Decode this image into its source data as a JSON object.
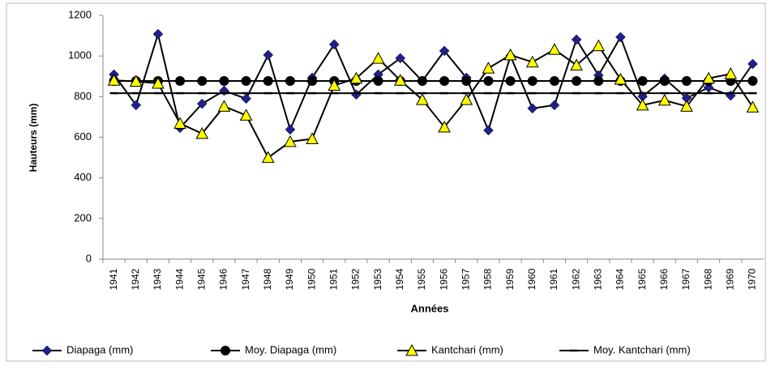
{
  "chart_data": {
    "type": "line",
    "xlabel": "Années",
    "ylabel": "Hauteurs (mm)",
    "categories": [
      "1941",
      "1942",
      "1943",
      "1944",
      "1945",
      "1946",
      "1947",
      "1948",
      "1949",
      "1950",
      "1951",
      "1952",
      "1953",
      "1954",
      "1955",
      "1956",
      "1957",
      "1958",
      "1959",
      "1960",
      "1961",
      "1962",
      "1963",
      "1964",
      "1965",
      "1966",
      "1967",
      "1968",
      "1969",
      "1970"
    ],
    "ylim": [
      0,
      1200
    ],
    "yticks": [
      0,
      200,
      400,
      600,
      800,
      1000,
      1200
    ],
    "grid": false,
    "legend": "bottom",
    "series": [
      {
        "name": "Diapaga (mm)",
        "color": "#1f1f8f",
        "marker": "diamond",
        "values": [
          909,
          758,
          1108,
          646,
          765,
          829,
          790,
          1005,
          638,
          893,
          1057,
          810,
          909,
          989,
          877,
          1025,
          893,
          634,
          1001,
          742,
          758,
          1081,
          905,
          1093,
          801,
          889,
          793,
          845,
          805,
          961
        ]
      },
      {
        "name": "Moy. Diapaga (mm)",
        "color": "#000000",
        "marker": "circle",
        "values": [
          877,
          877,
          877,
          877,
          877,
          877,
          877,
          877,
          877,
          877,
          877,
          877,
          877,
          877,
          877,
          877,
          877,
          877,
          877,
          877,
          877,
          877,
          877,
          877,
          877,
          877,
          877,
          877,
          877,
          877
        ]
      },
      {
        "name": "Kantchari (mm)",
        "color": "#ffff00",
        "marker": "triangle",
        "values": [
          880,
          875,
          865,
          668,
          618,
          752,
          708,
          500,
          578,
          592,
          855,
          890,
          988,
          880,
          785,
          650,
          785,
          940,
          1005,
          970,
          1032,
          955,
          1050,
          885,
          758,
          782,
          752,
          890,
          912,
          748
        ]
      },
      {
        "name": "Moy. Kantchari (mm)",
        "color": "#000000",
        "marker": "dash",
        "values": [
          817,
          817,
          817,
          817,
          817,
          817,
          817,
          817,
          817,
          817,
          817,
          817,
          817,
          817,
          817,
          817,
          817,
          817,
          817,
          817,
          817,
          817,
          817,
          817,
          817,
          817,
          817,
          817,
          817,
          817
        ]
      }
    ]
  }
}
